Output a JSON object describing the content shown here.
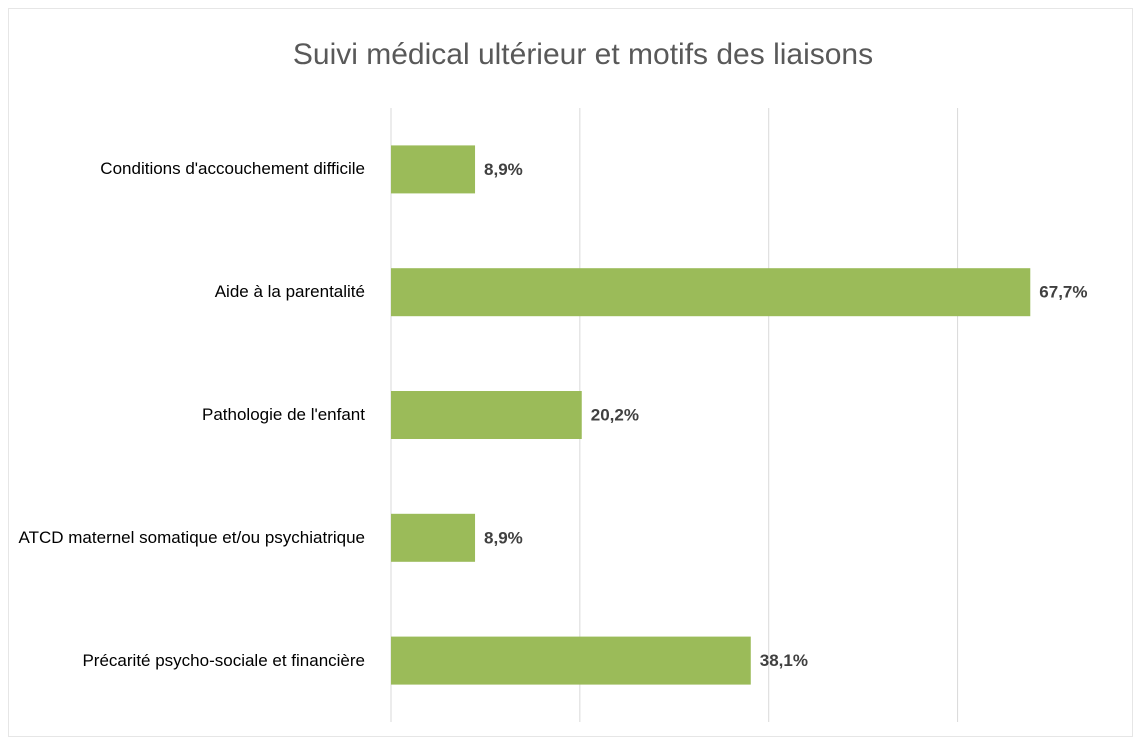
{
  "chart_data": {
    "type": "bar",
    "orientation": "horizontal",
    "title": "Suivi médical ultérieur et motifs des liaisons",
    "categories": [
      "Conditions d'accouchement difficile",
      "Aide à la parentalité",
      "Pathologie de l'enfant",
      "ATCD maternel somatique et/ou psychiatrique",
      "Précarité psycho-sociale et financière"
    ],
    "values": [
      8.9,
      67.7,
      20.2,
      8.9,
      38.1
    ],
    "value_labels": [
      "8,9%",
      "67,7%",
      "20,2%",
      "8,9%",
      "38,1%"
    ],
    "color": "#9bbb59",
    "xlim": [
      0,
      70
    ],
    "xticks": [
      0,
      20,
      40,
      60
    ],
    "grid": true
  }
}
